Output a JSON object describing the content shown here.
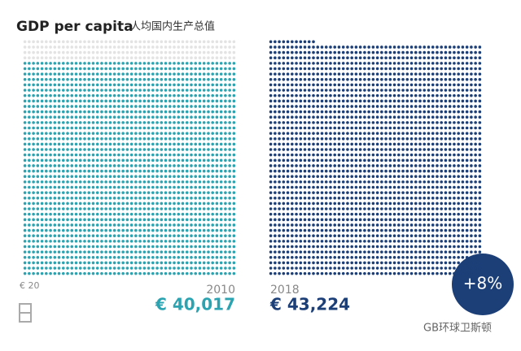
{
  "chart_data": {
    "type": "dot-grid",
    "title": "GDP per capita",
    "subtitle": "人均国内生产总值",
    "unit": {
      "value": 20,
      "label": "€ 20"
    },
    "series": [
      {
        "name": "2010",
        "color": "#2ba3b0",
        "value": 40017,
        "value_label": "€ 40,017"
      },
      {
        "name": "2018",
        "color": "#1c3f78",
        "value": 43224,
        "value_label": "€ 43,224"
      }
    ],
    "change": {
      "value": 8,
      "label": "+8%"
    },
    "watermark": "GB环球卫斯顿"
  }
}
